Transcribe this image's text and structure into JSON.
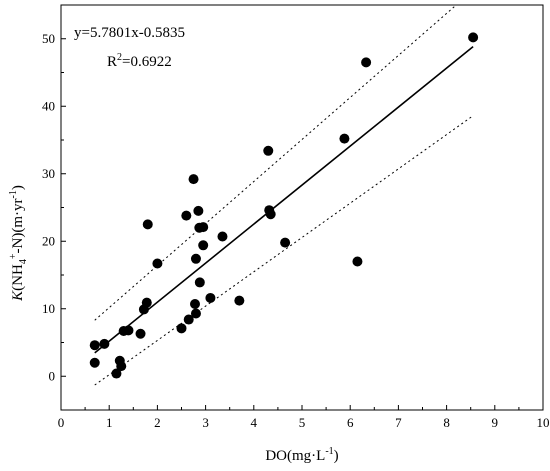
{
  "chart_data": {
    "type": "scatter",
    "xlabel": "DO(mg·L",
    "xlabel_sup": "-1",
    "xlabel_close": ")",
    "ylabel_k": "K",
    "ylabel_a": "(NH",
    "ylabel_sub": "4",
    "ylabel_sup": "+",
    "ylabel_b": "-N)(m·yr",
    "ylabel_sup2": "-1",
    "ylabel_c": ")",
    "xlim": [
      0,
      10
    ],
    "ylim": [
      -5,
      55
    ],
    "xticks": [
      "0",
      "1",
      "2",
      "3",
      "4",
      "5",
      "6",
      "7",
      "8",
      "9",
      "10"
    ],
    "yticks": [
      "0",
      "10",
      "20",
      "30",
      "40",
      "50"
    ],
    "equation": "y=5.7801x-0.5835",
    "r2_prefix": "R",
    "r2_sup": "2",
    "r2_value": "=0.6922",
    "fit": {
      "slope": 5.7801,
      "intercept": -0.5835,
      "x_range": [
        0.7,
        8.55
      ]
    },
    "confidence_upper": [
      [
        0.7,
        8.3
      ],
      [
        8.2,
        55.0
      ]
    ],
    "confidence_lower": [
      [
        0.7,
        -1.3
      ],
      [
        8.55,
        38.6
      ]
    ],
    "points": [
      [
        0.7,
        4.6
      ],
      [
        0.7,
        2.0
      ],
      [
        0.9,
        4.8
      ],
      [
        1.15,
        0.4
      ],
      [
        1.22,
        2.3
      ],
      [
        1.25,
        1.5
      ],
      [
        1.3,
        6.7
      ],
      [
        1.4,
        6.8
      ],
      [
        1.65,
        6.3
      ],
      [
        1.72,
        9.9
      ],
      [
        1.78,
        10.9
      ],
      [
        1.8,
        22.5
      ],
      [
        2.0,
        16.7
      ],
      [
        2.5,
        7.1
      ],
      [
        2.6,
        23.8
      ],
      [
        2.65,
        8.4
      ],
      [
        2.75,
        29.2
      ],
      [
        2.78,
        10.7
      ],
      [
        2.8,
        9.3
      ],
      [
        2.8,
        17.4
      ],
      [
        2.85,
        24.5
      ],
      [
        2.87,
        22.0
      ],
      [
        2.88,
        13.9
      ],
      [
        2.95,
        22.1
      ],
      [
        2.95,
        19.4
      ],
      [
        3.1,
        11.6
      ],
      [
        3.35,
        20.7
      ],
      [
        3.7,
        11.2
      ],
      [
        4.3,
        33.4
      ],
      [
        4.32,
        24.6
      ],
      [
        4.35,
        24.0
      ],
      [
        4.65,
        19.8
      ],
      [
        5.88,
        35.2
      ],
      [
        6.15,
        17.0
      ],
      [
        6.33,
        46.5
      ],
      [
        8.55,
        50.2
      ]
    ]
  }
}
